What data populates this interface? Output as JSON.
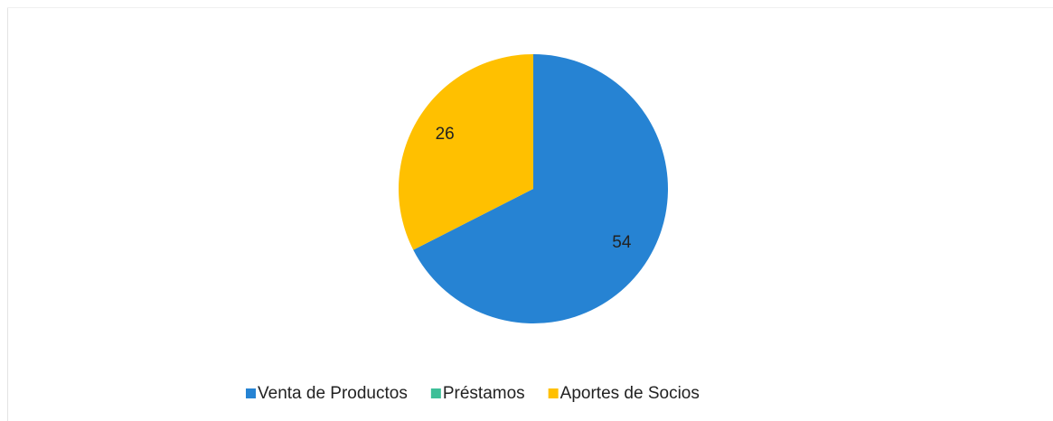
{
  "chart_data": {
    "type": "pie",
    "categories": [
      "Venta de Productos",
      "Préstamos",
      "Aportes de Socios"
    ],
    "values": [
      54,
      0,
      26
    ],
    "colors": [
      "#2683d3",
      "#3dbf98",
      "#ffc000"
    ],
    "legend": "bottom"
  }
}
